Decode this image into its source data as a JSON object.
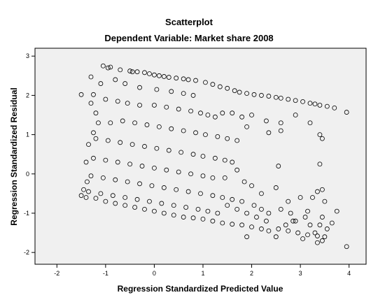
{
  "chart_data": {
    "type": "scatter",
    "title": "Scatterplot",
    "subtitle": "Dependent Variable: Market share 2008",
    "xlabel": "Regression Standardized Predicted Value",
    "ylabel": "Regression Standardized Residual",
    "xlim": [
      -2.45,
      4.35
    ],
    "ylim": [
      -2.3,
      3.2
    ],
    "xticks": [
      -2,
      -1,
      0,
      1,
      2,
      3,
      4
    ],
    "yticks": [
      -2,
      -1,
      0,
      1,
      2,
      3
    ],
    "grid": false,
    "series": [
      {
        "marker": "open-circle",
        "points": [
          [
            -1.05,
            2.75
          ],
          [
            -0.95,
            2.7
          ],
          [
            -0.9,
            2.72
          ],
          [
            -0.7,
            2.65
          ],
          [
            -0.5,
            2.62
          ],
          [
            -0.45,
            2.6
          ],
          [
            -0.35,
            2.6
          ],
          [
            -0.2,
            2.58
          ],
          [
            -0.1,
            2.55
          ],
          [
            0.0,
            2.52
          ],
          [
            0.1,
            2.5
          ],
          [
            0.2,
            2.48
          ],
          [
            0.3,
            2.46
          ],
          [
            0.45,
            2.44
          ],
          [
            0.6,
            2.42
          ],
          [
            0.7,
            2.4
          ],
          [
            0.85,
            2.38
          ],
          [
            1.05,
            2.33
          ],
          [
            1.2,
            2.28
          ],
          [
            1.35,
            2.22
          ],
          [
            1.5,
            2.18
          ],
          [
            1.65,
            2.12
          ],
          [
            1.75,
            2.08
          ],
          [
            1.9,
            2.05
          ],
          [
            2.05,
            2.02
          ],
          [
            2.2,
            2.0
          ],
          [
            2.35,
            1.98
          ],
          [
            2.5,
            1.95
          ],
          [
            2.6,
            1.93
          ],
          [
            2.75,
            1.9
          ],
          [
            2.9,
            1.87
          ],
          [
            3.05,
            1.84
          ],
          [
            3.2,
            1.8
          ],
          [
            3.3,
            1.78
          ],
          [
            3.4,
            1.75
          ],
          [
            3.55,
            1.72
          ],
          [
            3.7,
            1.68
          ],
          [
            -1.5,
            2.02
          ],
          [
            -1.25,
            2.02
          ],
          [
            -1.3,
            2.47
          ],
          [
            -1.3,
            1.8
          ],
          [
            -1.2,
            1.55
          ],
          [
            -1.25,
            1.05
          ],
          [
            -1.35,
            0.75
          ],
          [
            -1.4,
            0.3
          ],
          [
            -1.38,
            -0.2
          ],
          [
            -1.45,
            -0.4
          ],
          [
            -1.5,
            -0.55
          ],
          [
            -1.4,
            -0.6
          ],
          [
            -1.1,
            2.3
          ],
          [
            -0.8,
            2.4
          ],
          [
            -0.6,
            2.3
          ],
          [
            -0.3,
            2.2
          ],
          [
            0.05,
            2.15
          ],
          [
            0.35,
            2.1
          ],
          [
            0.6,
            2.05
          ],
          [
            0.8,
            2.0
          ],
          [
            -1.0,
            1.9
          ],
          [
            -0.75,
            1.85
          ],
          [
            -0.55,
            1.8
          ],
          [
            -0.3,
            1.75
          ],
          [
            0.0,
            1.75
          ],
          [
            0.25,
            1.7
          ],
          [
            0.5,
            1.65
          ],
          [
            0.75,
            1.6
          ],
          [
            0.95,
            1.55
          ],
          [
            1.1,
            1.5
          ],
          [
            1.25,
            1.45
          ],
          [
            1.4,
            1.55
          ],
          [
            1.6,
            1.55
          ],
          [
            1.8,
            1.45
          ],
          [
            2.0,
            1.5
          ],
          [
            2.3,
            1.35
          ],
          [
            2.6,
            1.3
          ],
          [
            2.9,
            1.5
          ],
          [
            3.2,
            1.3
          ],
          [
            3.95,
            1.57
          ],
          [
            1.9,
            1.2
          ],
          [
            2.35,
            1.05
          ],
          [
            2.6,
            1.1
          ],
          [
            3.4,
            1.0
          ],
          [
            3.45,
            0.9
          ],
          [
            -1.15,
            1.3
          ],
          [
            -0.9,
            1.3
          ],
          [
            -0.65,
            1.35
          ],
          [
            -0.4,
            1.3
          ],
          [
            -0.15,
            1.25
          ],
          [
            0.1,
            1.2
          ],
          [
            0.35,
            1.15
          ],
          [
            0.6,
            1.1
          ],
          [
            0.85,
            1.05
          ],
          [
            1.05,
            1.0
          ],
          [
            1.3,
            0.95
          ],
          [
            1.5,
            0.9
          ],
          [
            1.7,
            0.85
          ],
          [
            -1.2,
            0.9
          ],
          [
            -0.95,
            0.85
          ],
          [
            -0.7,
            0.8
          ],
          [
            -0.45,
            0.75
          ],
          [
            -0.2,
            0.7
          ],
          [
            0.05,
            0.65
          ],
          [
            0.3,
            0.6
          ],
          [
            0.55,
            0.55
          ],
          [
            0.8,
            0.5
          ],
          [
            1.0,
            0.45
          ],
          [
            1.25,
            0.4
          ],
          [
            1.45,
            0.35
          ],
          [
            1.6,
            0.3
          ],
          [
            -1.25,
            0.4
          ],
          [
            -1.0,
            0.35
          ],
          [
            -0.75,
            0.3
          ],
          [
            -0.5,
            0.25
          ],
          [
            -0.25,
            0.2
          ],
          [
            0.0,
            0.15
          ],
          [
            0.25,
            0.1
          ],
          [
            0.5,
            0.05
          ],
          [
            0.75,
            0.0
          ],
          [
            1.0,
            -0.05
          ],
          [
            1.2,
            -0.1
          ],
          [
            1.45,
            -0.1
          ],
          [
            1.7,
            0.1
          ],
          [
            1.85,
            -0.2
          ],
          [
            2.0,
            -0.3
          ],
          [
            2.2,
            -0.5
          ],
          [
            2.5,
            -0.35
          ],
          [
            2.55,
            0.2
          ],
          [
            2.75,
            -0.7
          ],
          [
            3.0,
            -0.6
          ],
          [
            3.35,
            -0.45
          ],
          [
            3.4,
            0.25
          ],
          [
            3.45,
            -0.4
          ],
          [
            -1.3,
            -0.05
          ],
          [
            -1.05,
            -0.1
          ],
          [
            -0.8,
            -0.15
          ],
          [
            -0.55,
            -0.2
          ],
          [
            -0.3,
            -0.25
          ],
          [
            -0.05,
            -0.3
          ],
          [
            0.2,
            -0.35
          ],
          [
            0.45,
            -0.4
          ],
          [
            0.7,
            -0.45
          ],
          [
            0.95,
            -0.5
          ],
          [
            1.2,
            -0.55
          ],
          [
            1.4,
            -0.6
          ],
          [
            1.6,
            -0.65
          ],
          [
            1.8,
            -0.7
          ],
          [
            -1.35,
            -0.45
          ],
          [
            -1.1,
            -0.5
          ],
          [
            -0.85,
            -0.55
          ],
          [
            -0.6,
            -0.6
          ],
          [
            -0.35,
            -0.65
          ],
          [
            -0.1,
            -0.7
          ],
          [
            0.15,
            -0.75
          ],
          [
            0.4,
            -0.8
          ],
          [
            0.65,
            -0.85
          ],
          [
            0.9,
            -0.9
          ],
          [
            1.1,
            -0.95
          ],
          [
            1.3,
            -1.0
          ],
          [
            -1.2,
            -0.62
          ],
          [
            -1.0,
            -0.7
          ],
          [
            -0.8,
            -0.75
          ],
          [
            -0.6,
            -0.8
          ],
          [
            -0.4,
            -0.85
          ],
          [
            -0.2,
            -0.9
          ],
          [
            0.0,
            -0.95
          ],
          [
            0.2,
            -1.0
          ],
          [
            0.4,
            -1.05
          ],
          [
            0.6,
            -1.1
          ],
          [
            0.8,
            -1.12
          ],
          [
            1.0,
            -1.15
          ],
          [
            1.2,
            -1.2
          ],
          [
            1.4,
            -1.25
          ],
          [
            1.6,
            -1.28
          ],
          [
            1.8,
            -1.3
          ],
          [
            2.0,
            -1.35
          ],
          [
            2.2,
            -1.4
          ],
          [
            2.35,
            -1.45
          ],
          [
            2.55,
            -1.4
          ],
          [
            2.75,
            -1.45
          ],
          [
            2.95,
            -1.5
          ],
          [
            3.15,
            -1.55
          ],
          [
            3.35,
            -1.58
          ],
          [
            3.5,
            -1.6
          ],
          [
            1.5,
            -0.8
          ],
          [
            1.7,
            -0.9
          ],
          [
            1.9,
            -1.0
          ],
          [
            2.1,
            -1.1
          ],
          [
            2.3,
            -1.2
          ],
          [
            2.7,
            -1.3
          ],
          [
            2.9,
            -1.2
          ],
          [
            3.1,
            -1.1
          ],
          [
            3.2,
            -1.3
          ],
          [
            3.3,
            -1.5
          ],
          [
            3.4,
            -1.3
          ],
          [
            3.55,
            -1.4
          ],
          [
            2.6,
            -0.9
          ],
          [
            2.8,
            -1.0
          ],
          [
            2.85,
            -1.2
          ],
          [
            3.15,
            -0.95
          ],
          [
            3.25,
            -0.6
          ],
          [
            3.45,
            -1.1
          ],
          [
            3.5,
            -0.7
          ],
          [
            3.65,
            -1.25
          ],
          [
            3.75,
            -0.95
          ],
          [
            2.35,
            -1.0
          ],
          [
            2.2,
            -0.9
          ],
          [
            2.05,
            -0.8
          ],
          [
            3.05,
            -1.65
          ],
          [
            3.45,
            -1.7
          ],
          [
            3.95,
            -1.85
          ],
          [
            3.35,
            -1.75
          ],
          [
            2.5,
            -1.6
          ],
          [
            1.9,
            -1.6
          ]
        ]
      }
    ]
  }
}
